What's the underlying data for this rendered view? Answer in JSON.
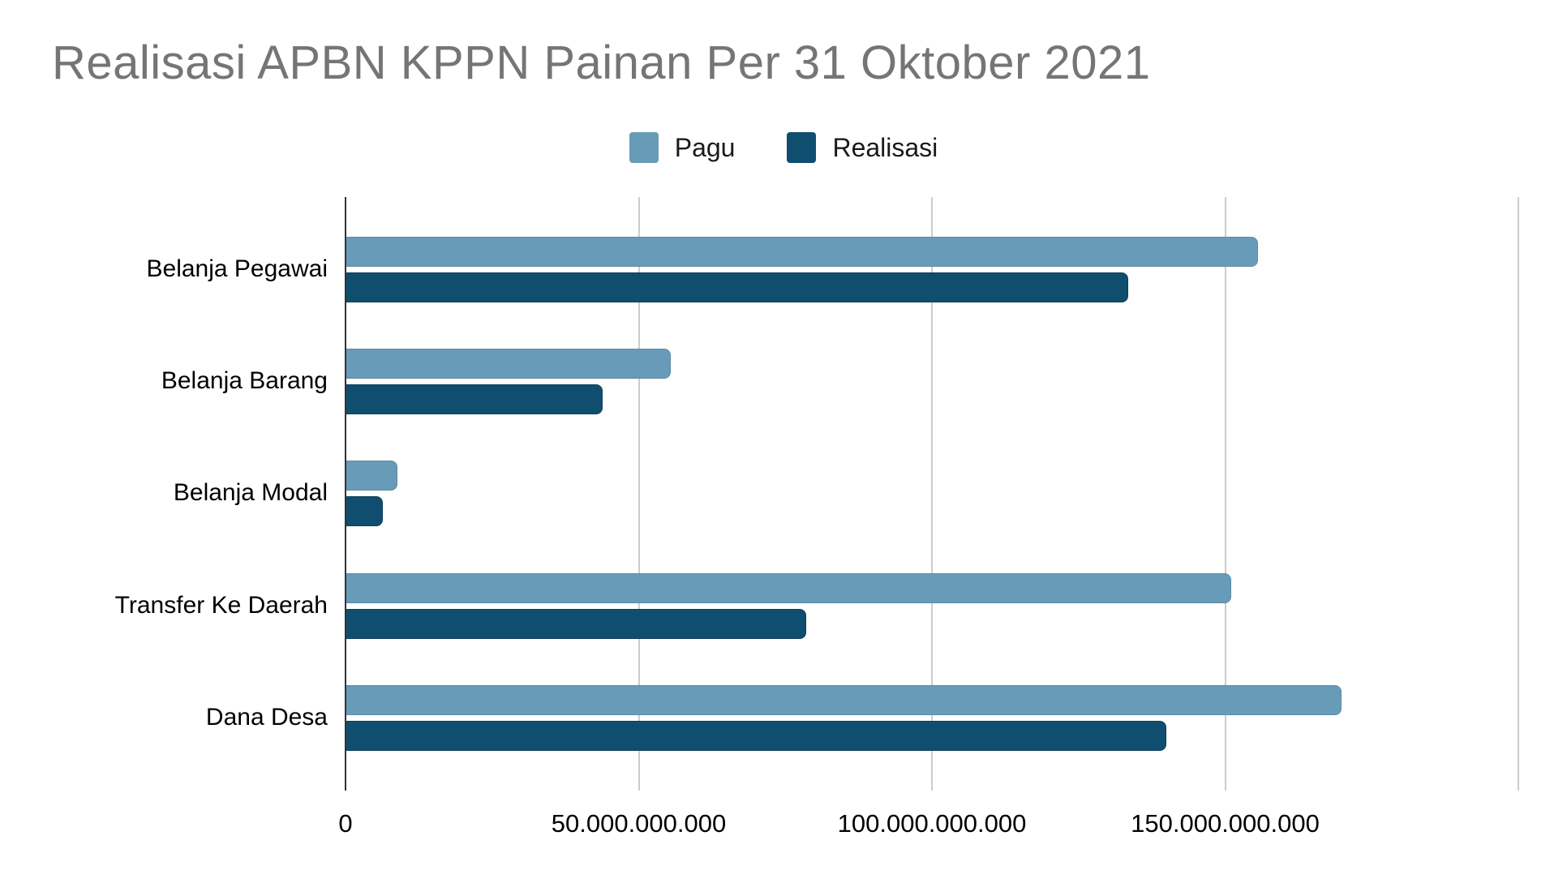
{
  "chart_data": {
    "type": "bar",
    "orientation": "horizontal",
    "title": "Realisasi APBN KPPN Painan Per 31 Oktober 2021",
    "categories": [
      "Belanja Pegawai",
      "Belanja Barang",
      "Belanja Modal",
      "Transfer Ke Daerah",
      "Dana Desa"
    ],
    "series": [
      {
        "name": "Pagu",
        "color": "#689bb8",
        "values": [
          155600000000,
          55400000000,
          8800000000,
          151100000000,
          169800000000
        ]
      },
      {
        "name": "Realisasi",
        "color": "#0f4e6e",
        "values": [
          133500000000,
          43900000000,
          6300000000,
          78600000000,
          140000000000
        ]
      }
    ],
    "x_axis": {
      "max": 200000000000,
      "grid": true,
      "ticks": [
        {
          "value": 0,
          "label": "0"
        },
        {
          "value": 50000000000,
          "label": "50.000.000.000"
        },
        {
          "value": 100000000000,
          "label": "100.000.000.000"
        },
        {
          "value": 150000000000,
          "label": "150.000.000.000"
        },
        {
          "value": 200000000000,
          "label": ""
        }
      ]
    },
    "legend_position": "top",
    "colors": {
      "title_text": "#757575",
      "axis_line": "#333333",
      "gridline": "#cccccc",
      "label_text": "#000000",
      "background": "#ffffff"
    }
  }
}
